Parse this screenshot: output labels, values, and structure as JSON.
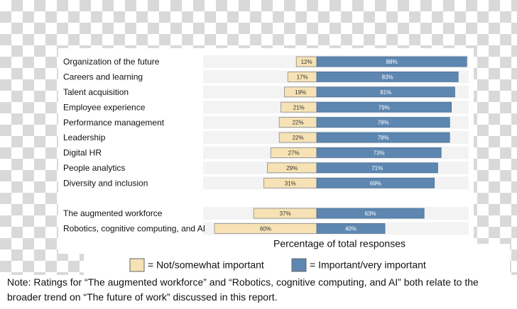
{
  "chart_data": {
    "type": "diverging-bar",
    "categories": [
      "Organization of the future",
      "Careers and learning",
      "Talent acquisition",
      "Employee experience",
      "Performance management",
      "Leadership",
      "Digital HR",
      "People analytics",
      "Diversity and inclusion",
      null,
      "The augmented workforce",
      "Robotics, cognitive computing, and AI"
    ],
    "series": [
      {
        "name": "= Not/somewhat important",
        "color": "#f6e2b4",
        "values": [
          12,
          17,
          19,
          21,
          22,
          22,
          27,
          29,
          31,
          null,
          37,
          60
        ],
        "value_labels": [
          "12%",
          "17%",
          "19%",
          "21%",
          "22%",
          "22%",
          "27%",
          "29%",
          "31%",
          null,
          "37%",
          "60%"
        ]
      },
      {
        "name": "= Important/very important",
        "color": "#5d87b1",
        "values": [
          88,
          83,
          81,
          79,
          78,
          78,
          73,
          71,
          69,
          null,
          63,
          40
        ],
        "value_labels": [
          "88%",
          "83%",
          "81%",
          "79%",
          "78%",
          "78%",
          "73%",
          "71%",
          "69%",
          null,
          "63%",
          "40%"
        ]
      }
    ],
    "xlabel": "Percentage of total responses",
    "note": "Note: Ratings for “The augmented workforce” and “Robotics, cognitive computing, and AI” both relate to the broader trend on “The future of work” discussed in this report."
  }
}
